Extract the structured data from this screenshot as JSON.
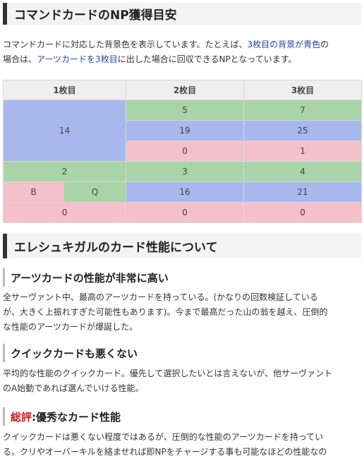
{
  "section1": {
    "heading": "コマンドカードのNP獲得目安",
    "intro": {
      "line1_a": "コマンドカードに対応した背景色を表示しています。たとえば、",
      "line1_link": "3枚目の背景が青色",
      "line1_b": "の",
      "line2_a": "場合は、",
      "line2_link": "アーツカードを3枚目",
      "line2_b": "に出した場合に回収できるNPとなっています。"
    }
  },
  "table": {
    "headers": [
      "1枚目",
      "2枚目",
      "3枚目"
    ],
    "card1": {
      "a": "14",
      "q": "2",
      "b_label": "B",
      "q_label": "Q",
      "b": "0"
    },
    "arts_row": {
      "second": "5",
      "third": "7"
    },
    "arts_row2": {
      "second": "19",
      "third": "25"
    },
    "arts_row3": {
      "second": "0",
      "third": "1"
    },
    "quick_row": {
      "second": "3",
      "third": "4"
    },
    "bq_row": {
      "second": "16",
      "third": "21"
    },
    "buster_row": {
      "second": "0",
      "third": "0"
    }
  },
  "colors": {
    "quick": "#a9d3a9",
    "arts": "#a8b8ec",
    "buster": "#f4c0cb",
    "link": "#2244aa",
    "accent_red": "#cc2222"
  },
  "section2": {
    "heading": "エレシュキガルのカード性能について",
    "sub1": {
      "title": "アーツカードの性能が非常に高い",
      "lines": [
        "全サーヴァント中、最高のアーツカードを持っている。(かなりの回数検証している",
        "が、大きく上振れすぎた可能性もあります)。今まで最高だった山の翁を越え、圧倒的",
        "な性能のアーツカードが爆誕した。"
      ]
    },
    "sub2": {
      "title": "クイックカードも悪くない",
      "lines": [
        "平均的な性能のクイックカード。優先して選択したいとは言えないが、他サーヴァント",
        "のA始動であれば選んでいける性能。"
      ]
    },
    "sub3": {
      "title_red": "総評",
      "title_rest": ":優秀なカード性能",
      "lines": [
        "クイックカードは悪くない程度ではあるが、圧倒的な性能のアーツカードを持ってい",
        "る。クリやオーバーキルを絡ませれば即NPをチャージする事も可能なほどの性能なの"
      ]
    }
  }
}
